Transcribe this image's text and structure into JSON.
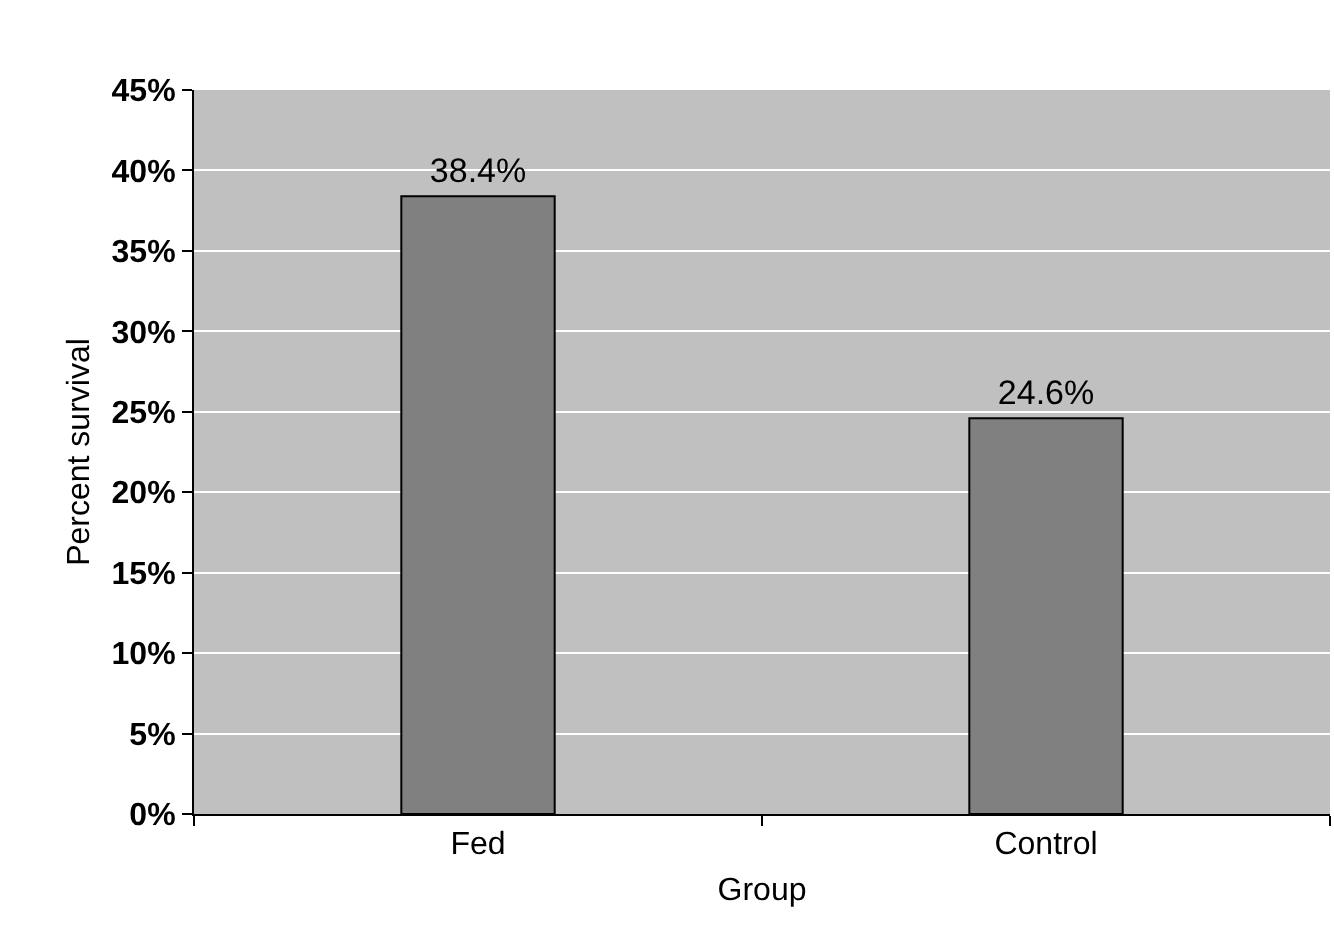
{
  "chart_data": {
    "type": "bar",
    "xlabel": "Group",
    "ylabel": "Percent survival",
    "categories": [
      "Fed",
      "Control"
    ],
    "values": [
      38.4,
      24.6
    ],
    "color": "#808080",
    "value_labels": [
      "38.4%",
      "24.6%"
    ],
    "ylim": [
      0,
      45
    ],
    "yticks": [
      {
        "value": 0,
        "label": "0%"
      },
      {
        "value": 5,
        "label": "5%"
      },
      {
        "value": 10,
        "label": "10%"
      },
      {
        "value": 15,
        "label": "15%"
      },
      {
        "value": 20,
        "label": "20%"
      },
      {
        "value": 25,
        "label": "25%"
      },
      {
        "value": 30,
        "label": "30%"
      },
      {
        "value": 35,
        "label": "35%"
      },
      {
        "value": 40,
        "label": "40%"
      },
      {
        "value": 45,
        "label": "45%"
      }
    ],
    "grid": "y",
    "legend": false
  }
}
